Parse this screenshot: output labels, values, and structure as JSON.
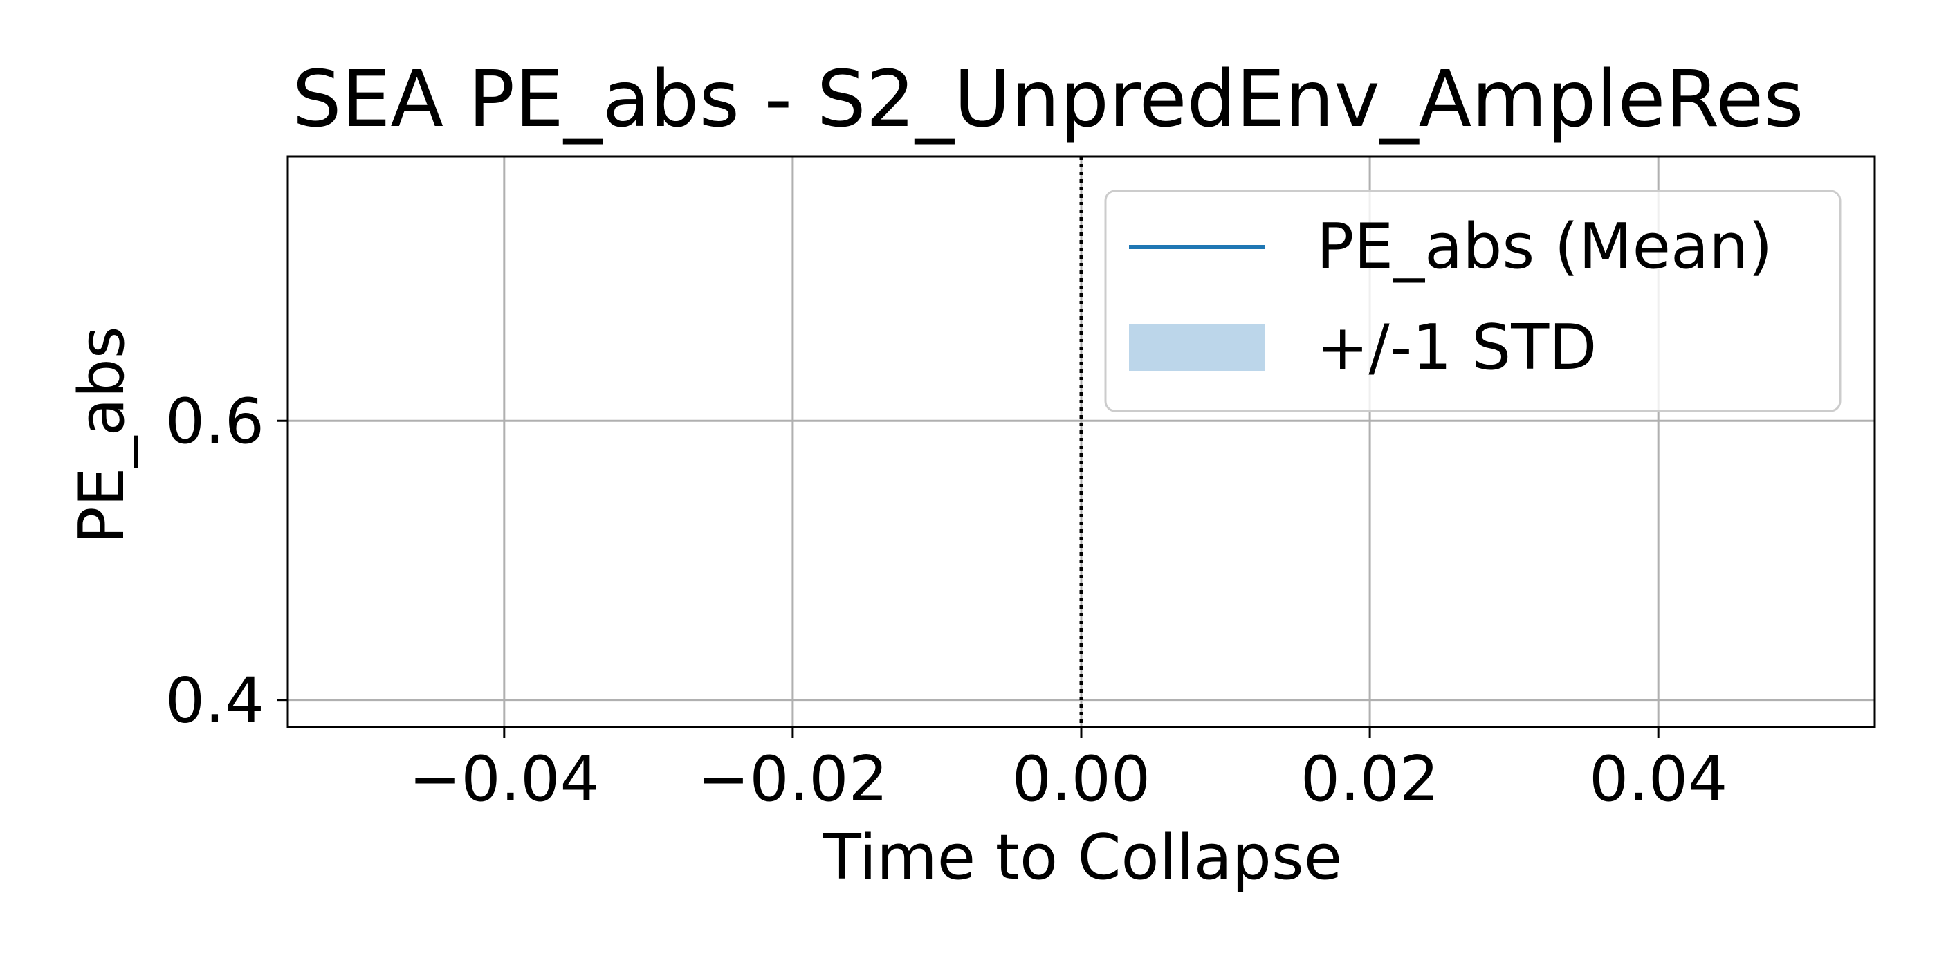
{
  "chart_data": {
    "type": "line",
    "title": "SEA PE_abs - S2_UnpredEnv_AmpleRes",
    "xlabel": "Time to Collapse",
    "ylabel": "PE_abs",
    "xlim": [
      -0.055,
      0.055
    ],
    "ylim": [
      0.3805,
      0.7895
    ],
    "x_ticks": [
      -0.04,
      -0.02,
      0.0,
      0.02,
      0.04
    ],
    "x_tick_labels": [
      "−0.04",
      "−0.02",
      "0.00",
      "0.02",
      "0.04"
    ],
    "y_ticks": [
      0.4,
      0.6
    ],
    "y_tick_labels": [
      "0.4",
      "0.6"
    ],
    "grid": true,
    "vline": {
      "x": 0.0,
      "style": "dotted",
      "color": "#000000"
    },
    "legend": {
      "placement": "top-right",
      "entries": [
        {
          "label": "PE_abs (Mean)",
          "kind": "line",
          "color": "#1f77b4"
        },
        {
          "label": "+/-1 STD",
          "kind": "patch",
          "color": "#bcd6ea"
        }
      ]
    },
    "series": [
      {
        "name": "PE_abs (Mean)",
        "x": [],
        "y": [],
        "color": "#1f77b4"
      }
    ]
  }
}
